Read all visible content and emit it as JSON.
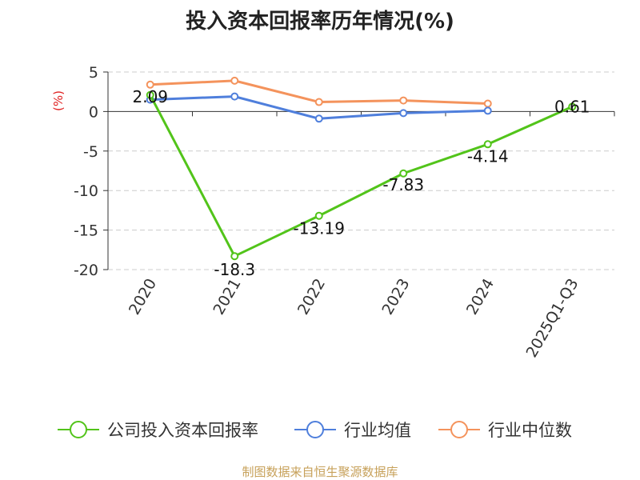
{
  "chart_data": {
    "type": "line",
    "title": "投入资本回报率历年情况(%)",
    "ylabel": "(%)",
    "categories": [
      "2020",
      "2021",
      "2022",
      "2023",
      "2024",
      "2025Q1-Q3"
    ],
    "ylim": [
      -20,
      5
    ],
    "yticks": [
      5,
      0,
      -5,
      -10,
      -15,
      -20
    ],
    "grid": true,
    "legend_position": "bottom",
    "series": [
      {
        "name": "公司投入资本回报率",
        "color": "#52c41a",
        "values": [
          2.09,
          -18.3,
          -13.19,
          -7.83,
          -4.14,
          0.61
        ],
        "labels": [
          "2.09",
          "-18.3",
          "-13.19",
          "-7.83",
          "-4.14",
          "0.61"
        ]
      },
      {
        "name": "行业均值",
        "color": "#4f7fdc",
        "values": [
          1.5,
          1.9,
          -0.9,
          -0.2,
          0.1,
          null
        ]
      },
      {
        "name": "行业中位数",
        "color": "#f4935c",
        "values": [
          3.4,
          3.9,
          1.2,
          1.4,
          1.0,
          null
        ]
      }
    ]
  },
  "source": "制图数据来自恒生聚源数据库"
}
